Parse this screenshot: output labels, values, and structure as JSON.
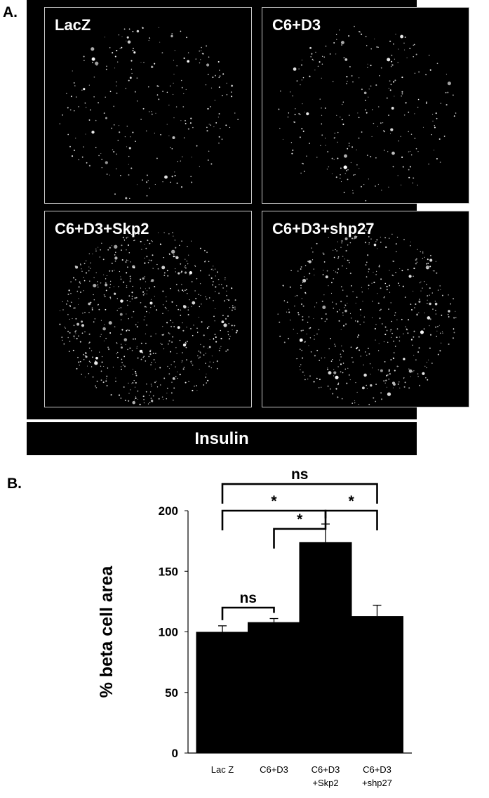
{
  "panel_a": {
    "letter": "A.",
    "images": [
      {
        "label": "LacZ",
        "density": 0.6
      },
      {
        "label": "C6+D3",
        "density": 0.65
      },
      {
        "label": "C6+D3+Skp2",
        "density": 1.6
      },
      {
        "label": "C6+D3+shp27",
        "density": 1.2
      }
    ],
    "stain_label": "Insulin"
  },
  "panel_b": {
    "letter": "B."
  },
  "chart_data": {
    "type": "bar",
    "categories": [
      [
        "Lac Z"
      ],
      [
        "C6+D3"
      ],
      [
        "C6+D3",
        "+Skp2"
      ],
      [
        "C6+D3",
        "+shp27"
      ]
    ],
    "values": [
      100,
      108,
      174,
      113
    ],
    "errors": [
      5,
      3,
      15,
      9
    ],
    "ylabel": "% beta cell area",
    "ylim": [
      0,
      200
    ],
    "yticks": [
      0,
      50,
      100,
      150,
      200
    ],
    "bar_color": "#000000",
    "significance": [
      {
        "from": 0,
        "to": 1,
        "label": "ns",
        "level": 120
      },
      {
        "from": 1,
        "to": 2,
        "label": "*",
        "level": 185
      },
      {
        "from": 0,
        "to": 2,
        "label": "*",
        "level": 200
      },
      {
        "from": 2,
        "to": 3,
        "label": "*",
        "level": 200
      },
      {
        "from": 0,
        "to": 3,
        "label": "ns",
        "level": 222
      }
    ]
  }
}
